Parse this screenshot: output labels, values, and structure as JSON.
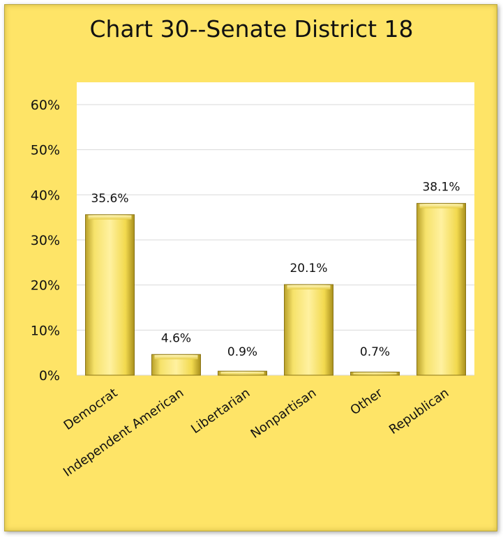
{
  "chart_data": {
    "type": "bar",
    "title": "Chart 30--Senate District 18",
    "categories": [
      "Democrat",
      "Independent American",
      "Libertarian",
      "Nonpartisan",
      "Other",
      "Republican"
    ],
    "values": [
      35.6,
      4.6,
      0.9,
      20.1,
      0.7,
      38.1
    ],
    "value_labels": [
      "35.6%",
      "4.6%",
      "0.9%",
      "20.1%",
      "0.7%",
      "38.1%"
    ],
    "y_ticks": [
      0,
      10,
      20,
      30,
      40,
      50,
      60
    ],
    "y_tick_labels": [
      "0%",
      "10%",
      "20%",
      "30%",
      "40%",
      "50%",
      "60%"
    ],
    "ylim": [
      0,
      60
    ],
    "grid": true,
    "legend": "none",
    "bar_color": "#f4de57",
    "background_color": "#fee467",
    "plot_background": "#ffffff"
  }
}
